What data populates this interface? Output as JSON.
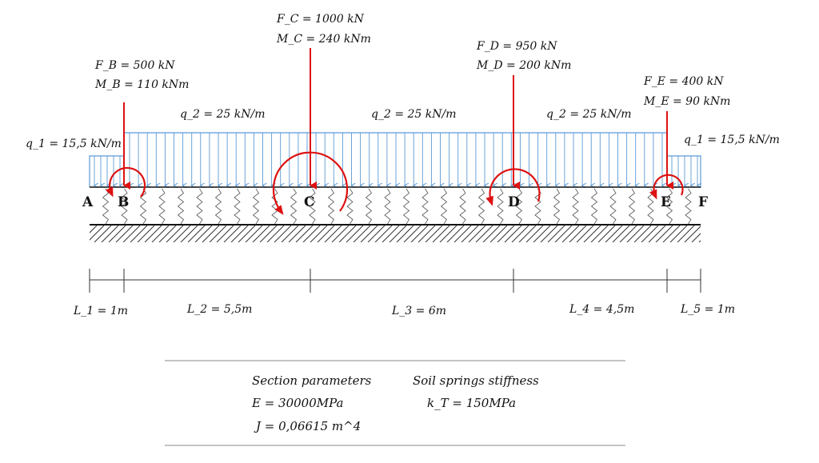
{
  "points": [
    "A",
    "B",
    "C",
    "D",
    "E",
    "F"
  ],
  "loads": [
    {
      "point": "B",
      "force": "F_B = 500 kN",
      "moment": "M_B = 110 kNm"
    },
    {
      "point": "C",
      "force": "F_C = 1000 kN",
      "moment": "M_C = 240 kNm"
    },
    {
      "point": "D",
      "force": "F_D = 950 kN",
      "moment": "M_D = 200 kNm"
    },
    {
      "point": "E",
      "force": "F_E = 400 kN",
      "moment": "M_E = 90 kNm"
    }
  ],
  "distributed": {
    "q1_left": "q_1 = 15,5 kN/m",
    "q2_1": "q_2 = 25 kN/m",
    "q2_2": "q_2 = 25 kN/m",
    "q2_3": "q_2 = 25 kN/m",
    "q1_right": "q_1 = 15,5 kN/m"
  },
  "spans": [
    "L_1 = 1m",
    "L_2 = 5,5m",
    "L_3 = 6m",
    "L_4 = 4,5m",
    "L_5 = 1m"
  ],
  "colors": {
    "load_arrow": "#dd1111",
    "dist_load": "#5b9bd5",
    "soil_spring": "#555555",
    "ink": "#111111"
  },
  "params": {
    "section_title": "Section parameters",
    "E": "E = 30000MPa",
    "J": "J = 0,06615 m^4",
    "soil_title": "Soil springs stiffness",
    "kT": "k_T = 150MPa"
  }
}
